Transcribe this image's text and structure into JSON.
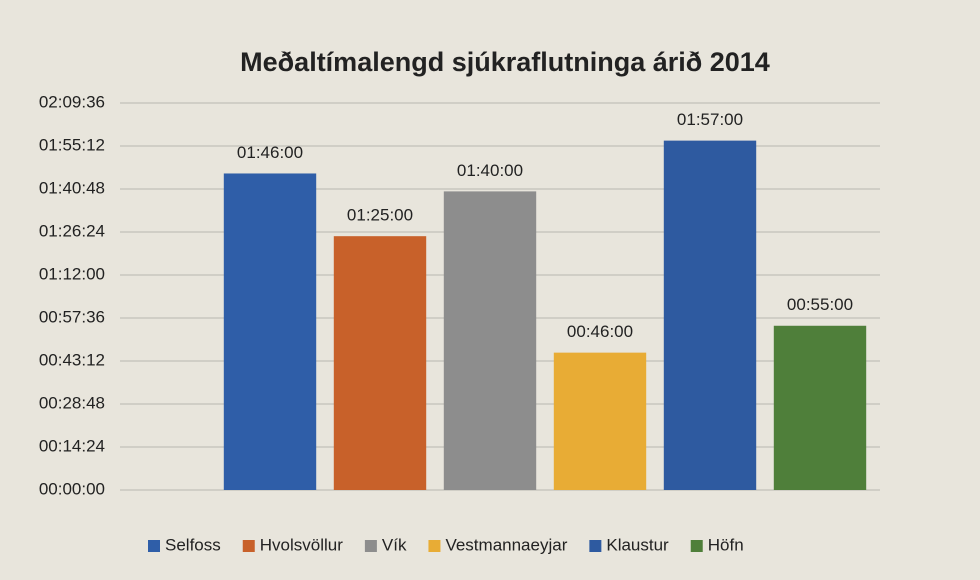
{
  "chart_data": {
    "type": "bar",
    "title": "Meðaltímalengd sjúkraflutninga árið 2014",
    "categories": [
      "Selfoss",
      "Hvolsvöllur",
      "Vík",
      "Vestmannaeyjar",
      "Klaustur",
      "Höfn"
    ],
    "values": [
      106,
      85,
      100,
      46,
      117,
      55
    ],
    "value_labels": [
      "01:46:00",
      "01:25:00",
      "01:40:00",
      "00:46:00",
      "01:57:00",
      "00:55:00"
    ],
    "colors": [
      "#2f5ea8",
      "#c8612a",
      "#8d8d8d",
      "#e8ac35",
      "#2e5aa0",
      "#4f7f3a"
    ],
    "ylim": [
      0,
      129.6
    ],
    "yticks": [
      {
        "value": 0,
        "label": "00:00:00"
      },
      {
        "value": 14.4,
        "label": "00:14:24"
      },
      {
        "value": 28.8,
        "label": "00:28:48"
      },
      {
        "value": 43.2,
        "label": "00:43:12"
      },
      {
        "value": 57.6,
        "label": "00:57:36"
      },
      {
        "value": 72,
        "label": "01:12:00"
      },
      {
        "value": 86.4,
        "label": "01:26:24"
      },
      {
        "value": 100.8,
        "label": "01:40:48"
      },
      {
        "value": 115.2,
        "label": "01:55:12"
      },
      {
        "value": 129.6,
        "label": "02:09:36"
      }
    ],
    "grid": true,
    "legend": "bottom"
  }
}
